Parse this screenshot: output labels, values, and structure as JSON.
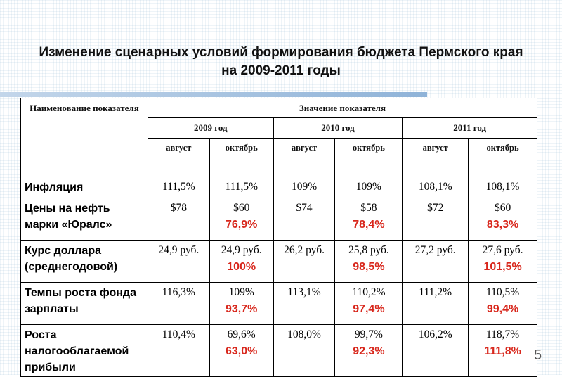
{
  "title": "Изменение сценарных условий формирования бюджета Пермского края  на 2009-2011 годы",
  "table": {
    "name_header": "Наименование показателя",
    "group_header": "Значение показателя",
    "years": [
      "2009 год",
      "2010 год",
      "2011 год"
    ],
    "months": [
      "август",
      "октябрь",
      "август",
      "октябрь",
      "август",
      "октябрь"
    ],
    "rows": [
      {
        "name": "Инфляция",
        "values": [
          "111,5%",
          "111,5%",
          "109%",
          "109%",
          "108,1%",
          "108,1%"
        ],
        "pcts": [
          "",
          "",
          "",
          "",
          "",
          ""
        ]
      },
      {
        "name": "Цены на нефть марки «Юралс»",
        "values": [
          "$78",
          "$60",
          "$74",
          "$58",
          "$72",
          "$60"
        ],
        "pcts": [
          "",
          "76,9%",
          "",
          "78,4%",
          "",
          "83,3%"
        ]
      },
      {
        "name": "Курс доллара (среднегодовой)",
        "values": [
          "24,9 руб.",
          "24,9 руб.",
          "26,2 руб.",
          "25,8 руб.",
          "27,2 руб.",
          "27,6 руб."
        ],
        "pcts": [
          "",
          "100%",
          "",
          "98,5%",
          "",
          "101,5%"
        ]
      },
      {
        "name": "Темпы роста фонда зарплаты",
        "values": [
          "116,3%",
          "109%",
          "113,1%",
          "110,2%",
          "111,2%",
          "110,5%"
        ],
        "pcts": [
          "",
          "93,7%",
          "",
          "97,4%",
          "",
          "99,4%"
        ]
      },
      {
        "name": "Роста налогооблагаемой прибыли",
        "values": [
          "110,4%",
          "69,6%",
          "108,0%",
          "99,7%",
          "106,2%",
          "118,7%"
        ],
        "pcts": [
          "",
          "63,0%",
          "",
          "92,3%",
          "",
          "111,8%"
        ]
      }
    ]
  },
  "slide_number": "5",
  "colors": {
    "highlight": "#d8271c",
    "rule": "#8fb3d8"
  }
}
